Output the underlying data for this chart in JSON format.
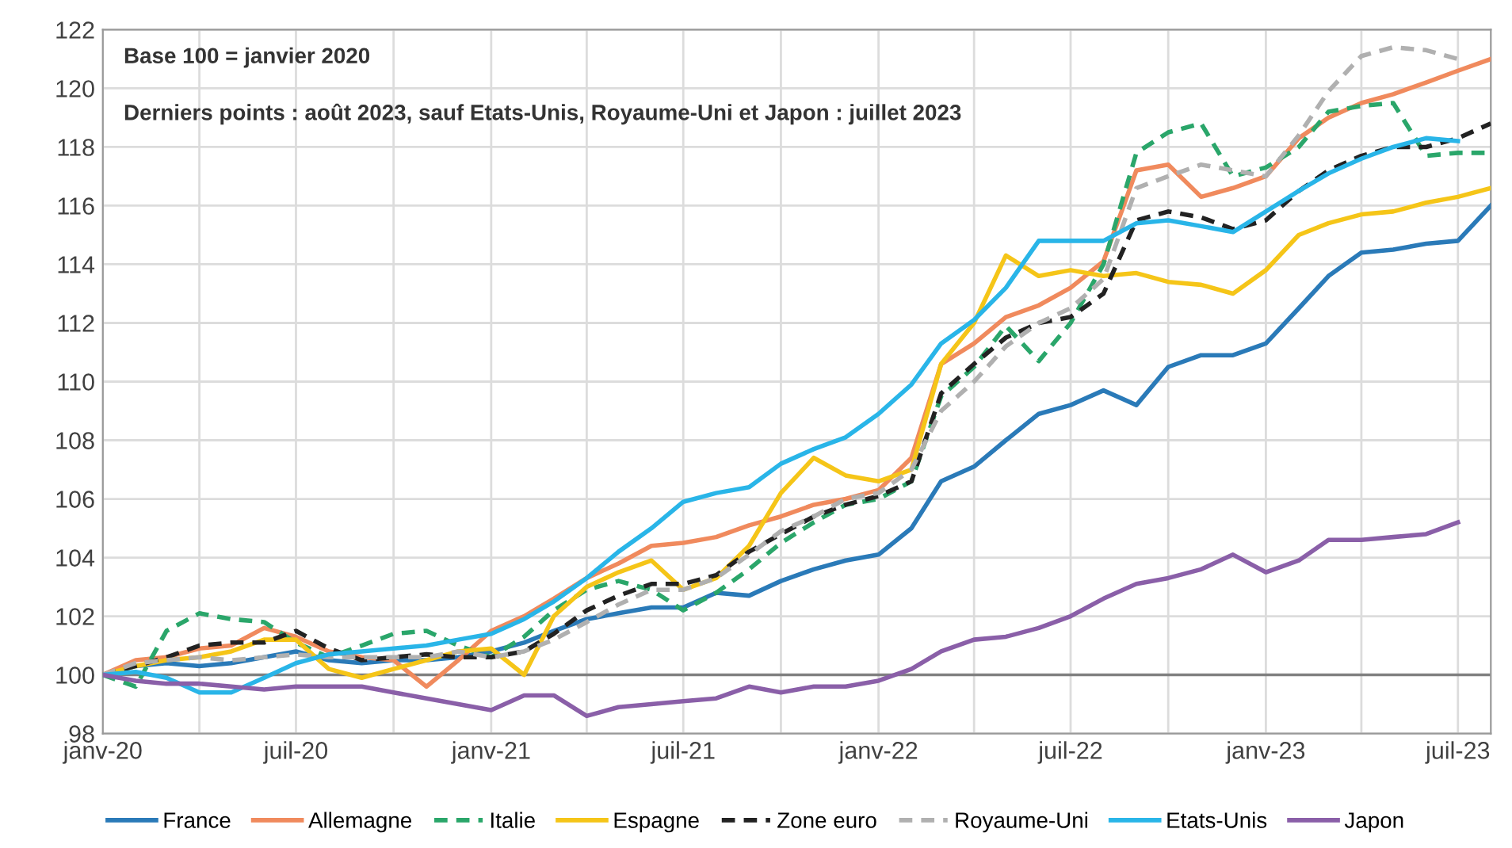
{
  "chart_data": {
    "type": "line",
    "annotations": [
      "Base 100 = janvier 2020",
      "Derniers points : août 2023, sauf Etats-Unis, Royaume-Uni et Japon : juillet 2023"
    ],
    "x": [
      "2020-01",
      "2020-02",
      "2020-03",
      "2020-04",
      "2020-05",
      "2020-06",
      "2020-07",
      "2020-08",
      "2020-09",
      "2020-10",
      "2020-11",
      "2020-12",
      "2021-01",
      "2021-02",
      "2021-03",
      "2021-04",
      "2021-05",
      "2021-06",
      "2021-07",
      "2021-08",
      "2021-09",
      "2021-10",
      "2021-11",
      "2021-12",
      "2022-01",
      "2022-02",
      "2022-03",
      "2022-04",
      "2022-05",
      "2022-06",
      "2022-07",
      "2022-08",
      "2022-09",
      "2022-10",
      "2022-11",
      "2022-12",
      "2023-01",
      "2023-02",
      "2023-03",
      "2023-04",
      "2023-05",
      "2023-06",
      "2023-07",
      "2023-08"
    ],
    "series": [
      {
        "name": "France",
        "color": "#2a7ab8",
        "line_style": "solid",
        "values": [
          100,
          100.3,
          100.4,
          100.3,
          100.4,
          100.6,
          100.8,
          100.5,
          100.4,
          100.5,
          100.5,
          100.6,
          100.8,
          101.1,
          101.5,
          101.9,
          102.1,
          102.3,
          102.3,
          102.8,
          102.7,
          103.2,
          103.6,
          103.9,
          104.1,
          105.0,
          106.6,
          107.1,
          108.0,
          108.9,
          109.2,
          109.7,
          109.2,
          110.5,
          110.9,
          110.9,
          111.3,
          112.5,
          113.6,
          114.4,
          114.5,
          114.7,
          114.8,
          116.0
        ]
      },
      {
        "name": "Allemagne",
        "color": "#f08a5d",
        "line_style": "solid",
        "values": [
          100,
          100.5,
          100.6,
          100.9,
          101.0,
          101.6,
          101.3,
          100.8,
          100.6,
          100.5,
          99.6,
          100.5,
          101.5,
          102.0,
          102.6,
          103.3,
          103.8,
          104.4,
          104.5,
          104.7,
          105.1,
          105.4,
          105.8,
          106.0,
          106.3,
          107.4,
          110.6,
          111.3,
          112.2,
          112.6,
          113.2,
          114.1,
          117.2,
          117.4,
          116.3,
          116.6,
          117.0,
          118.3,
          119.0,
          119.5,
          119.8,
          120.2,
          120.6,
          121.0
        ]
      },
      {
        "name": "Italie",
        "color": "#2aa66a",
        "line_style": "dashed",
        "values": [
          100,
          99.6,
          101.5,
          102.1,
          101.9,
          101.8,
          101.1,
          100.6,
          101.0,
          101.4,
          101.5,
          101.0,
          100.6,
          101.3,
          102.2,
          102.9,
          103.2,
          102.9,
          102.2,
          102.8,
          103.6,
          104.5,
          105.2,
          105.8,
          106.0,
          106.6,
          109.5,
          110.5,
          111.9,
          110.7,
          112.0,
          114.0,
          117.8,
          118.5,
          118.8,
          117.0,
          117.3,
          118.0,
          119.2,
          119.4,
          119.5,
          117.7,
          117.8,
          117.8
        ]
      },
      {
        "name": "Espagne",
        "color": "#f5c518",
        "line_style": "solid",
        "values": [
          100,
          100.3,
          100.5,
          100.6,
          100.8,
          101.2,
          101.2,
          100.2,
          99.9,
          100.2,
          100.5,
          100.8,
          100.9,
          100.0,
          102.0,
          103.0,
          103.5,
          103.9,
          102.9,
          103.3,
          104.4,
          106.2,
          107.4,
          106.8,
          106.6,
          107.0,
          110.6,
          112.0,
          114.3,
          113.6,
          113.8,
          113.6,
          113.7,
          113.4,
          113.3,
          113.0,
          113.8,
          115.0,
          115.4,
          115.7,
          115.8,
          116.1,
          116.3,
          116.6
        ]
      },
      {
        "name": "Zone euro",
        "color": "#222222",
        "line_style": "dashed",
        "values": [
          100,
          100.3,
          100.6,
          101.0,
          101.1,
          101.1,
          101.5,
          100.9,
          100.5,
          100.6,
          100.7,
          100.6,
          100.6,
          100.8,
          101.4,
          102.2,
          102.7,
          103.1,
          103.1,
          103.4,
          104.2,
          104.8,
          105.4,
          105.8,
          106.1,
          106.6,
          109.6,
          110.6,
          111.5,
          112.0,
          112.2,
          113.0,
          115.5,
          115.8,
          115.6,
          115.2,
          115.5,
          116.5,
          117.2,
          117.7,
          118.0,
          118.0,
          118.3,
          118.8
        ]
      },
      {
        "name": "Royaume-Uni",
        "color": "#b0b0b0",
        "line_style": "dashed",
        "values": [
          100,
          100.4,
          100.5,
          100.6,
          100.5,
          100.6,
          100.7,
          100.6,
          100.6,
          100.6,
          100.6,
          100.8,
          100.6,
          100.8,
          101.2,
          101.8,
          102.4,
          102.9,
          102.9,
          103.3,
          104.1,
          104.9,
          105.4,
          106.0,
          106.2,
          107.0,
          109.0,
          110.0,
          111.2,
          112.0,
          112.5,
          113.5,
          116.6,
          117.0,
          117.4,
          117.2,
          117.0,
          118.4,
          119.9,
          121.1,
          121.4,
          121.3,
          121.0,
          null
        ]
      },
      {
        "name": "Etats-Unis",
        "color": "#29b5e8",
        "line_style": "solid",
        "values": [
          100,
          100.1,
          99.9,
          99.4,
          99.4,
          99.9,
          100.4,
          100.7,
          100.8,
          100.9,
          101.0,
          101.2,
          101.4,
          101.9,
          102.5,
          103.3,
          104.2,
          105.0,
          105.9,
          106.2,
          106.4,
          107.2,
          107.7,
          108.1,
          108.9,
          109.9,
          111.3,
          112.1,
          113.2,
          114.8,
          114.8,
          114.8,
          115.4,
          115.5,
          115.3,
          115.1,
          115.8,
          116.5,
          117.1,
          117.6,
          118.0,
          118.3,
          118.2,
          null
        ]
      },
      {
        "name": "Japon",
        "color": "#8a5fa8",
        "line_style": "solid",
        "values": [
          100,
          99.8,
          99.7,
          99.7,
          99.6,
          99.5,
          99.6,
          99.6,
          99.6,
          99.4,
          99.2,
          99.0,
          98.8,
          99.3,
          99.3,
          98.6,
          98.9,
          99.0,
          99.1,
          99.2,
          99.6,
          99.4,
          99.6,
          99.6,
          99.8,
          100.2,
          100.8,
          101.2,
          101.3,
          101.6,
          102.0,
          102.6,
          103.1,
          103.3,
          103.6,
          104.1,
          103.5,
          103.9,
          104.6,
          104.6,
          104.7,
          104.8,
          105.2,
          null
        ]
      }
    ],
    "xlim": [
      "2020-01",
      "2023-08"
    ],
    "xticks": [
      {
        "value": "2020-01",
        "label": "janv-20"
      },
      {
        "value": "2020-04",
        "label": null
      },
      {
        "value": "2020-07",
        "label": "juil-20"
      },
      {
        "value": "2020-10",
        "label": null
      },
      {
        "value": "2021-01",
        "label": "janv-21"
      },
      {
        "value": "2021-04",
        "label": null
      },
      {
        "value": "2021-07",
        "label": "juil-21"
      },
      {
        "value": "2021-10",
        "label": null
      },
      {
        "value": "2022-01",
        "label": "janv-22"
      },
      {
        "value": "2022-04",
        "label": null
      },
      {
        "value": "2022-07",
        "label": "juil-22"
      },
      {
        "value": "2022-10",
        "label": null
      },
      {
        "value": "2023-01",
        "label": "janv-23"
      },
      {
        "value": "2023-04",
        "label": null
      },
      {
        "value": "2023-07",
        "label": "juil-23"
      }
    ],
    "ylim": [
      98,
      122
    ],
    "yticks": [
      98,
      100,
      102,
      104,
      106,
      108,
      110,
      112,
      114,
      116,
      118,
      120,
      122
    ],
    "ref_lines": [
      {
        "axis": "y",
        "value": 100,
        "color": "#808080"
      }
    ],
    "grid": true,
    "legend": "bottom",
    "marker": "none"
  }
}
